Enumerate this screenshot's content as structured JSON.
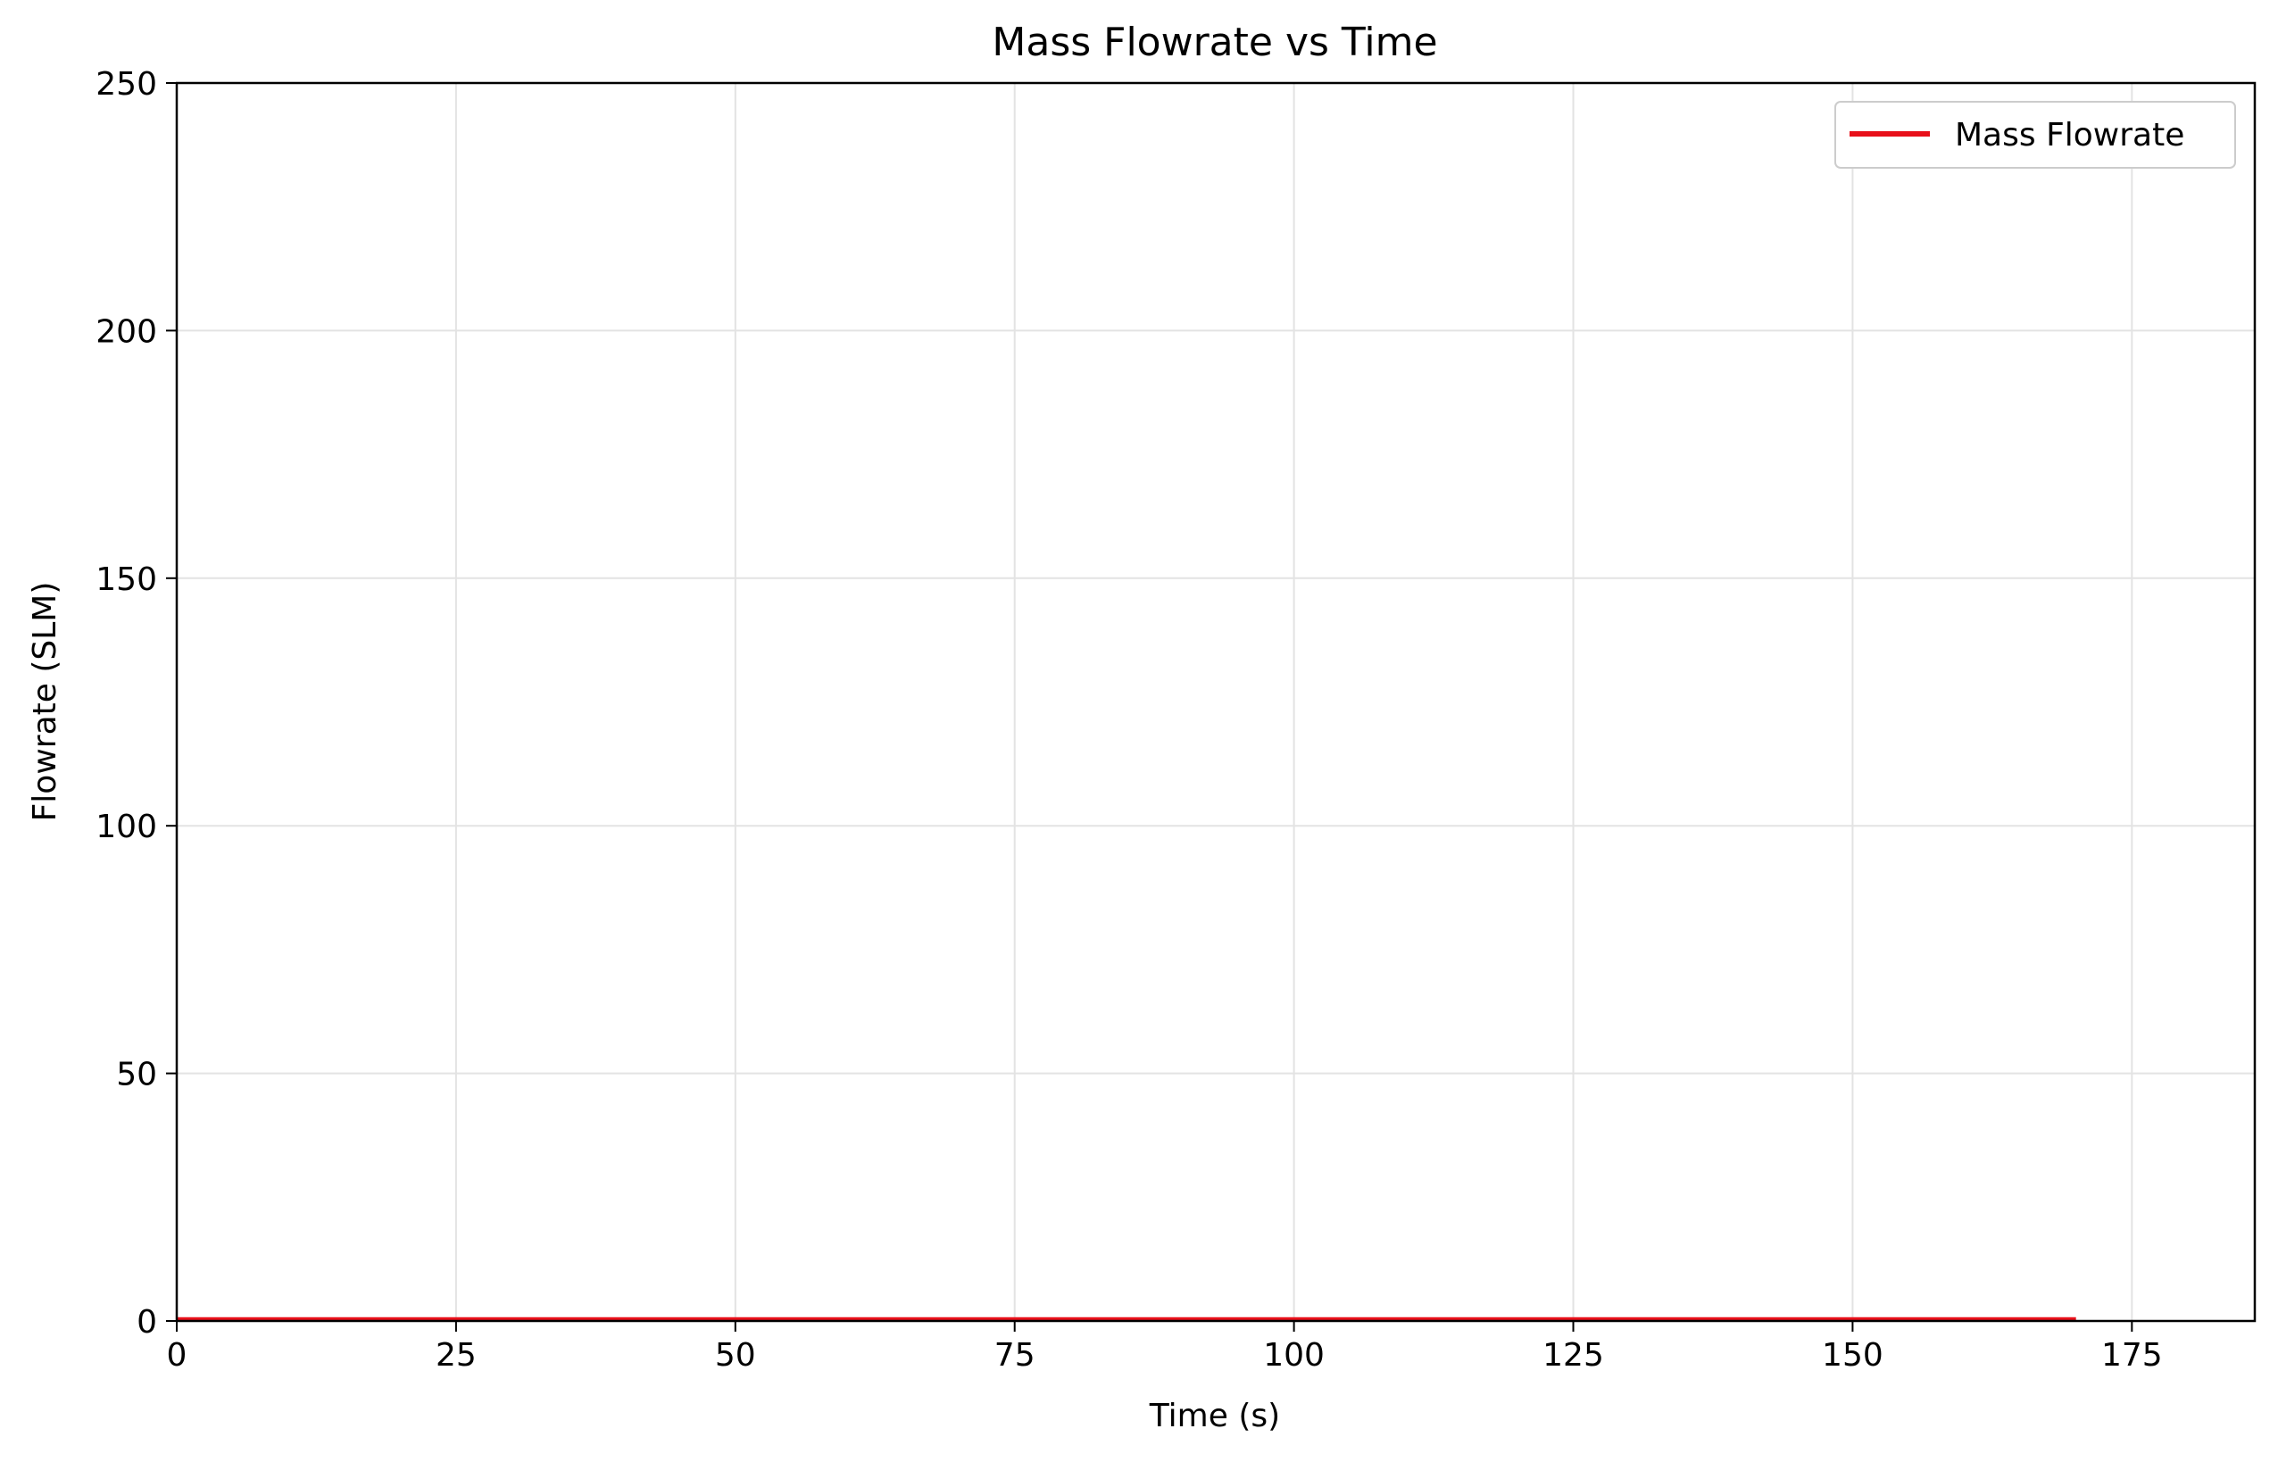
{
  "chart_data": {
    "type": "line",
    "title": "Mass Flowrate vs Time",
    "xlabel": "Time (s)",
    "ylabel": "Flowrate (SLM)",
    "xlim": [
      0,
      186
    ],
    "ylim": [
      0,
      250
    ],
    "xticks": [
      0,
      25,
      50,
      75,
      100,
      125,
      150,
      175
    ],
    "yticks": [
      0,
      50,
      100,
      150,
      200,
      250
    ],
    "grid": true,
    "legend": "top-right",
    "series": [
      {
        "name": "Mass Flowrate",
        "color": "#e8101a",
        "x": [
          0,
          25,
          50,
          75,
          100,
          125,
          150,
          170
        ],
        "y": [
          0.3,
          0.3,
          0.3,
          0.3,
          0.3,
          0.3,
          0.3,
          0.3
        ]
      }
    ]
  }
}
